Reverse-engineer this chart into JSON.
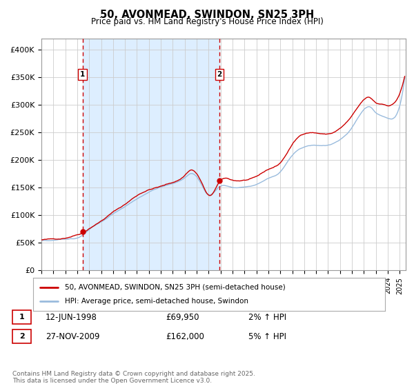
{
  "title": "50, AVONMEAD, SWINDON, SN25 3PH",
  "subtitle": "Price paid vs. HM Land Registry's House Price Index (HPI)",
  "legend_label_red": "50, AVONMEAD, SWINDON, SN25 3PH (semi-detached house)",
  "legend_label_blue": "HPI: Average price, semi-detached house, Swindon",
  "annotation1_label": "1",
  "annotation1_date": "12-JUN-1998",
  "annotation1_price": "£69,950",
  "annotation1_hpi": "2% ↑ HPI",
  "annotation1_year": 1998.45,
  "annotation1_value": 69950,
  "annotation2_label": "2",
  "annotation2_date": "27-NOV-2009",
  "annotation2_price": "£162,000",
  "annotation2_hpi": "5% ↑ HPI",
  "annotation2_year": 2009.9,
  "annotation2_value": 162000,
  "ylabel_ticks": [
    "£0",
    "£50K",
    "£100K",
    "£150K",
    "£200K",
    "£250K",
    "£300K",
    "£350K",
    "£400K"
  ],
  "ytick_values": [
    0,
    50000,
    100000,
    150000,
    200000,
    250000,
    300000,
    350000,
    400000
  ],
  "background_color": "#ffffff",
  "shaded_region_color": "#ddeeff",
  "grid_color": "#cccccc",
  "red_line_color": "#cc0000",
  "blue_line_color": "#99bbdd",
  "dashed_line_color": "#cc0000",
  "footer_text": "Contains HM Land Registry data © Crown copyright and database right 2025.\nThis data is licensed under the Open Government Licence v3.0.",
  "xmin": 1995,
  "xmax": 2025.5,
  "ymin": 0,
  "ymax": 420000,
  "key_years_r": [
    1995,
    1996,
    1997,
    1998.0,
    1998.45,
    1999,
    2000,
    2001,
    2002,
    2003,
    2004,
    2005,
    2006,
    2007,
    2007.5,
    2008,
    2008.5,
    2009.0,
    2009.9,
    2010.5,
    2011,
    2012,
    2013,
    2014,
    2015,
    2016,
    2017,
    2018,
    2019,
    2020,
    2021,
    2021.5,
    2022,
    2022.3,
    2022.7,
    2023,
    2023.5,
    2024,
    2024.5,
    2025
  ],
  "key_vals_r": [
    55000,
    56000,
    59000,
    66000,
    69950,
    78000,
    92000,
    108000,
    122000,
    138000,
    149000,
    155000,
    162000,
    175000,
    185000,
    178000,
    158000,
    138000,
    162000,
    168000,
    165000,
    165000,
    170000,
    183000,
    195000,
    228000,
    248000,
    250000,
    248000,
    258000,
    280000,
    295000,
    308000,
    312000,
    308000,
    302000,
    300000,
    298000,
    302000,
    320000
  ],
  "key_years_b": [
    1995,
    1996,
    1997,
    1998.45,
    1999,
    2000,
    2001,
    2002,
    2003,
    2004,
    2005,
    2006,
    2007,
    2007.5,
    2008,
    2008.5,
    2009.0,
    2009.9,
    2010.5,
    2011,
    2012,
    2013,
    2014,
    2015,
    2016,
    2017,
    2018,
    2019,
    2020,
    2021,
    2021.5,
    2022,
    2022.5,
    2023,
    2023.5,
    2024,
    2024.5,
    2025
  ],
  "key_vals_b": [
    54000,
    55000,
    57000,
    65000,
    75000,
    88000,
    103000,
    116000,
    130000,
    142000,
    150000,
    157000,
    168000,
    176000,
    170000,
    152000,
    138000,
    153000,
    155000,
    152000,
    153000,
    157000,
    168000,
    180000,
    210000,
    225000,
    228000,
    228000,
    238000,
    260000,
    278000,
    293000,
    298000,
    288000,
    282000,
    278000,
    278000,
    300000
  ]
}
